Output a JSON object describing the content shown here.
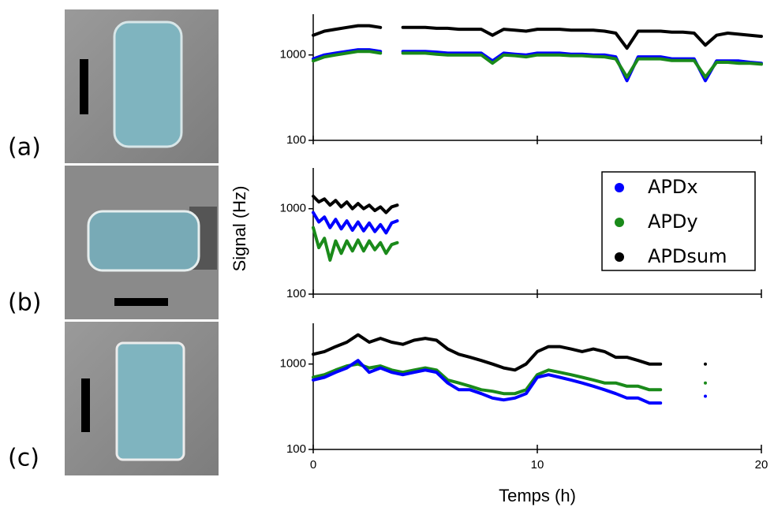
{
  "panel_labels": [
    "(a)",
    "(b)",
    "(c)"
  ],
  "chart_data": [
    {
      "type": "line",
      "log_y": true,
      "xlim": [
        0,
        20
      ],
      "xticks": [
        0,
        10,
        20
      ],
      "ylim": [
        100,
        3000
      ],
      "yticks": [
        100,
        1000
      ],
      "x": [
        0,
        0.5,
        1,
        1.5,
        2,
        2.5,
        3,
        3.5,
        4,
        4.5,
        5,
        5.5,
        6,
        6.5,
        7,
        7.5,
        8,
        8.5,
        9,
        9.5,
        10,
        10.5,
        11,
        11.5,
        12,
        12.5,
        13,
        13.5,
        14,
        14.5,
        15,
        15.5,
        16,
        16.5,
        17,
        17.5,
        18,
        18.5,
        19,
        19.5,
        20
      ],
      "series": [
        {
          "color": "#000000",
          "values": [
            1700,
            1900,
            2000,
            2100,
            2200,
            2200,
            2100,
            null,
            2100,
            2100,
            2100,
            2050,
            2050,
            2000,
            2000,
            2000,
            1700,
            2000,
            1950,
            1900,
            2000,
            2000,
            2000,
            1950,
            1950,
            1950,
            1900,
            1800,
            1200,
            1900,
            1900,
            1900,
            1850,
            1850,
            1800,
            1300,
            1700,
            1800,
            1750,
            1700,
            1650
          ]
        },
        {
          "color": "#0000ff",
          "values": [
            900,
            1000,
            1050,
            1100,
            1150,
            1150,
            1100,
            null,
            1100,
            1100,
            1100,
            1080,
            1050,
            1050,
            1050,
            1050,
            850,
            1050,
            1020,
            1000,
            1050,
            1050,
            1050,
            1020,
            1020,
            1000,
            1000,
            950,
            500,
            950,
            950,
            950,
            900,
            900,
            900,
            500,
            850,
            850,
            850,
            820,
            800
          ]
        },
        {
          "color": "#1a8a1a",
          "values": [
            850,
            950,
            1000,
            1050,
            1100,
            1100,
            1050,
            null,
            1050,
            1050,
            1050,
            1020,
            1000,
            1000,
            1000,
            1000,
            800,
            1000,
            980,
            950,
            1000,
            1000,
            1000,
            980,
            980,
            960,
            950,
            900,
            550,
            900,
            900,
            900,
            860,
            860,
            860,
            550,
            820,
            820,
            800,
            800,
            780
          ]
        }
      ]
    },
    {
      "type": "line",
      "log_y": true,
      "xlim": [
        0,
        20
      ],
      "xticks": [
        0,
        10,
        20
      ],
      "ylim": [
        100,
        3000
      ],
      "yticks": [
        100,
        1000
      ],
      "ylabel": "Signal (Hz)",
      "legend": "upper right",
      "x": [
        0,
        0.25,
        0.5,
        0.75,
        1,
        1.25,
        1.5,
        1.75,
        2,
        2.25,
        2.5,
        2.75,
        3,
        3.25,
        3.5,
        3.75
      ],
      "series": [
        {
          "name": "APDx",
          "color": "#0000ff",
          "values": [
            900,
            700,
            800,
            600,
            750,
            580,
            720,
            560,
            700,
            550,
            680,
            540,
            650,
            520,
            680,
            720
          ]
        },
        {
          "name": "APDy",
          "color": "#1a8a1a",
          "values": [
            600,
            350,
            450,
            250,
            420,
            300,
            420,
            320,
            430,
            320,
            420,
            330,
            400,
            300,
            380,
            400
          ]
        },
        {
          "name": "APDsum",
          "color": "#000000",
          "values": [
            1400,
            1200,
            1300,
            1100,
            1250,
            1050,
            1200,
            1000,
            1150,
            1000,
            1100,
            950,
            1050,
            900,
            1050,
            1100
          ]
        }
      ]
    },
    {
      "type": "line",
      "log_y": true,
      "xlim": [
        0,
        20
      ],
      "xticks": [
        0,
        10,
        20
      ],
      "ylim": [
        100,
        3000
      ],
      "yticks": [
        100,
        1000
      ],
      "xlabel": "Temps (h)",
      "x": [
        0,
        0.5,
        1,
        1.5,
        2,
        2.5,
        3,
        3.5,
        4,
        4.5,
        5,
        5.5,
        6,
        6.5,
        7,
        7.5,
        8,
        8.5,
        9,
        9.5,
        10,
        10.5,
        11,
        11.5,
        12,
        12.5,
        13,
        13.5,
        14,
        14.5,
        15,
        15.5,
        16,
        16.5,
        17,
        17.5,
        18,
        18.5,
        19,
        19.5,
        20
      ],
      "series": [
        {
          "color": "#000000",
          "values": [
            1300,
            1400,
            1600,
            1800,
            2200,
            1800,
            2000,
            1800,
            1700,
            1900,
            2000,
            1900,
            1500,
            1300,
            1200,
            1100,
            1000,
            900,
            850,
            1000,
            1400,
            1600,
            1600,
            1500,
            1400,
            1500,
            1400,
            1200,
            1200,
            1100,
            1000,
            1000,
            null,
            null,
            null,
            1000,
            null,
            null,
            null,
            null,
            null
          ]
        },
        {
          "color": "#1a8a1a",
          "values": [
            700,
            750,
            850,
            950,
            1000,
            900,
            950,
            850,
            800,
            850,
            900,
            850,
            650,
            600,
            550,
            500,
            480,
            450,
            450,
            500,
            750,
            850,
            800,
            750,
            700,
            650,
            600,
            600,
            550,
            550,
            500,
            500,
            null,
            null,
            null,
            600,
            null,
            null,
            null,
            null,
            null
          ]
        },
        {
          "color": "#0000ff",
          "values": [
            650,
            700,
            800,
            900,
            1100,
            800,
            900,
            800,
            750,
            800,
            850,
            800,
            600,
            500,
            500,
            450,
            400,
            380,
            400,
            450,
            700,
            750,
            700,
            650,
            600,
            550,
            500,
            450,
            400,
            400,
            350,
            350,
            null,
            null,
            null,
            420,
            null,
            null,
            null,
            null,
            null
          ]
        }
      ]
    }
  ]
}
